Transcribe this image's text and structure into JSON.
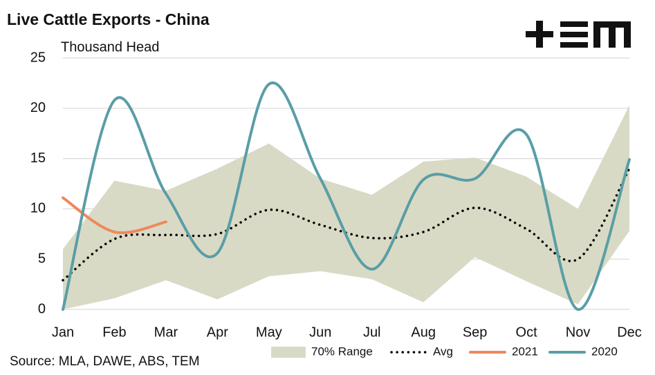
{
  "chart_data": {
    "type": "line",
    "title": "Live Cattle Exports - China",
    "subtitle": "Thousand Head",
    "source": "Source: MLA, DAWE, ABS, TEM",
    "categories": [
      "Jan",
      "Feb",
      "Mar",
      "Apr",
      "May",
      "Jun",
      "Jul",
      "Aug",
      "Sep",
      "Oct",
      "Nov",
      "Dec"
    ],
    "ylim": [
      0,
      25
    ],
    "yticks": [
      0,
      5,
      10,
      15,
      20,
      25
    ],
    "grid": true,
    "legend": "bottom",
    "range": {
      "name": "70% Range",
      "color": "#d9dac5",
      "high": [
        6,
        12.8,
        11.8,
        14,
        16.5,
        13,
        11.4,
        14.7,
        15.1,
        13.2,
        10,
        20.3
      ],
      "low": [
        0,
        1.1,
        2.9,
        1,
        3.3,
        3.8,
        3,
        0.7,
        5.2,
        2.8,
        0.5,
        7.8
      ]
    },
    "series": [
      {
        "name": "Avg",
        "color": "#000000",
        "dotted": true,
        "values": [
          2.9,
          7,
          7.4,
          7.5,
          9.9,
          8.4,
          7.1,
          7.7,
          10.1,
          8,
          5,
          14
        ]
      },
      {
        "name": "2021",
        "color": "#f0875a",
        "values": [
          11.1,
          7.7,
          8.7,
          null,
          null,
          null,
          null,
          null,
          null,
          null,
          null,
          null
        ]
      },
      {
        "name": "2020",
        "color": "#5a9ea6",
        "values": [
          0,
          20.8,
          11.5,
          5.6,
          22.4,
          13,
          4,
          12.9,
          13,
          17.4,
          0,
          14.9
        ]
      }
    ]
  }
}
